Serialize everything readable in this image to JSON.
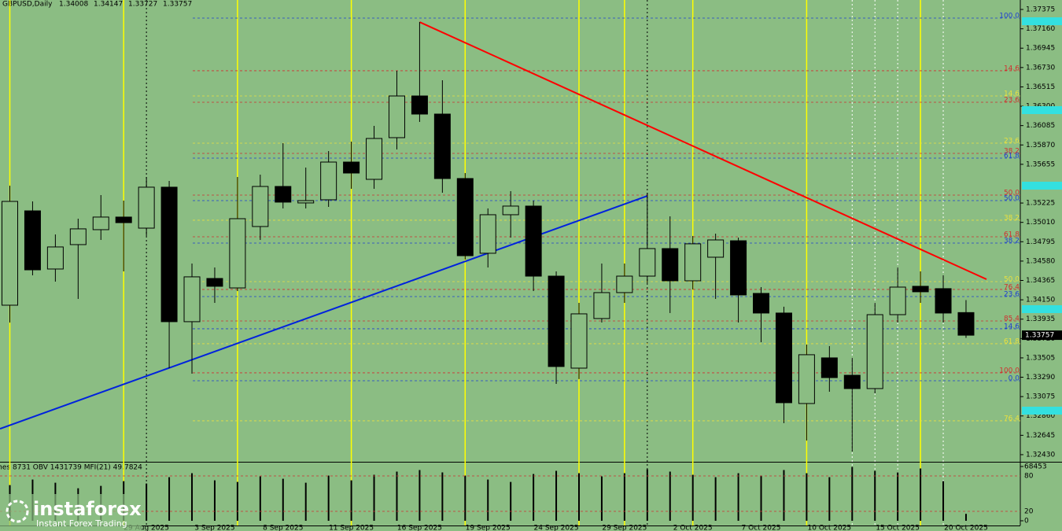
{
  "chart_data": {
    "type": "candlestick",
    "title": "GBPUSD,Daily",
    "categories": [
      null,
      null,
      null,
      null,
      null,
      null,
      "29 Aug 2025",
      null,
      null,
      "3 Sep 2025",
      null,
      null,
      "8 Sep 2025",
      null,
      null,
      "11 Sep 2025",
      null,
      null,
      "16 Sep 2025",
      null,
      null,
      "19 Sep 2025",
      null,
      null,
      "24 Sep 2025",
      null,
      null,
      "29 Sep 2025",
      null,
      null,
      "2 Oct 2025",
      null,
      null,
      "7 Oct 2025",
      null,
      null,
      "10 Oct 2025",
      null,
      null,
      "15 Oct 2025",
      null,
      null,
      "20 Oct 2025"
    ],
    "open": [
      1.3409,
      1.35138,
      1.34492,
      1.34763,
      1.34929,
      1.35069,
      1.34946,
      1.35401,
      1.33907,
      1.34387,
      1.34282,
      1.34964,
      1.35409,
      1.35226,
      1.35261,
      1.3568,
      1.35488,
      1.35951,
      1.36414,
      1.36213,
      1.35497,
      1.34667,
      1.35095,
      1.35191,
      1.34413,
      1.33391,
      1.33942,
      1.3423,
      1.34413,
      1.34719,
      1.34361,
      1.34623,
      1.34806,
      1.34221,
      1.34003,
      1.32998,
      1.33505,
      1.33312,
      1.33164,
      1.33985,
      1.343,
      1.34274,
      1.34008
    ],
    "high": [
      1.35418,
      1.35243,
      1.34876,
      1.35051,
      1.35313,
      1.35252,
      1.35514,
      1.3547,
      1.34553,
      1.34509,
      1.35514,
      1.3554,
      1.3589,
      1.35619,
      1.35802,
      1.35907,
      1.36082,
      1.36694,
      1.37235,
      1.36589,
      1.35558,
      1.35165,
      1.35357,
      1.35252,
      1.34466,
      1.34116,
      1.34553,
      1.34553,
      1.35339,
      1.35077,
      1.34859,
      1.34885,
      1.34841,
      1.34291,
      1.34073,
      1.33653,
      1.33636,
      1.33505,
      1.34116,
      1.34509,
      1.34466,
      1.34422,
      1.34147
    ],
    "low": [
      1.33898,
      1.34422,
      1.34352,
      1.3416,
      1.34815,
      1.34466,
      1.34859,
      1.33391,
      1.3333,
      1.34116,
      1.34247,
      1.34815,
      1.35165,
      1.35165,
      1.35182,
      1.35383,
      1.35383,
      1.3582,
      1.36126,
      1.35339,
      1.34597,
      1.34509,
      1.34841,
      1.34247,
      1.33216,
      1.33269,
      1.33898,
      1.34116,
      1.34335,
      1.34003,
      1.34265,
      1.3416,
      1.33898,
      1.33679,
      1.3278,
      1.32587,
      1.33129,
      1.32465,
      1.33111,
      1.33898,
      1.34116,
      1.33898,
      1.33727
    ],
    "close": [
      1.35243,
      1.34483,
      1.34737,
      1.34938,
      1.35069,
      1.35007,
      1.35401,
      1.33907,
      1.34405,
      1.343,
      1.35051,
      1.35409,
      1.35235,
      1.35252,
      1.3568,
      1.35558,
      1.35942,
      1.36414,
      1.36213,
      1.35497,
      1.3464,
      1.35095,
      1.35191,
      1.34413,
      1.33409,
      1.33994,
      1.3423,
      1.34413,
      1.34719,
      1.34361,
      1.34772,
      1.34815,
      1.34204,
      1.34003,
      1.33007,
      1.3354,
      1.33286,
      1.33164,
      1.33985,
      1.34291,
      1.34239,
      1.34003,
      1.33757
    ],
    "up_color": "#8bbd83",
    "down_color": "#000000",
    "ylim": [
      1.32351,
      1.3748
    ],
    "yticks": [
      1.37375,
      {
        "value": 1.3716,
        "label": "1.37160"
      },
      1.36945,
      {
        "value": 1.3673,
        "label": "1.36730"
      },
      1.36515,
      {
        "value": 1.363,
        "label": "1.36300"
      },
      1.36085,
      {
        "value": 1.3587,
        "label": "1.35870"
      },
      1.35655,
      1.35225,
      {
        "value": 1.3501,
        "label": "1.35010"
      },
      1.34795,
      {
        "value": 1.3458,
        "label": "1.34580"
      },
      1.34365,
      {
        "value": 1.3415,
        "label": "1.34150"
      },
      1.33935,
      {
        "value": 1.3372,
        "label": "1.33720"
      },
      1.33505,
      {
        "value": 1.3329,
        "label": "1.33290"
      },
      1.33075,
      {
        "value": 1.3286,
        "label": "1.32860"
      },
      1.32645,
      {
        "value": 1.3243,
        "label": "1.32430"
      }
    ],
    "levels": [
      {
        "label": "100.0",
        "price": 1.37279,
        "color": "#2040d0"
      },
      {
        "label": "14.6",
        "price": 1.36694,
        "color": "#d03030"
      },
      {
        "label": "14.6",
        "price": 1.36414,
        "color": "#e8e040"
      },
      {
        "label": "23.6",
        "price": 1.36344,
        "color": "#d03030"
      },
      {
        "label": "23.6",
        "price": 1.3589,
        "color": "#e8e040"
      },
      {
        "label": "38.2",
        "price": 1.35776,
        "color": "#d03030"
      },
      {
        "label": "61.8",
        "price": 1.35724,
        "color": "#2040d0"
      },
      {
        "label": "50.0",
        "price": 1.35313,
        "color": "#d03030"
      },
      {
        "label": "50.0",
        "price": 1.35252,
        "color": "#2040d0"
      },
      {
        "label": "38.2",
        "price": 1.35034,
        "color": "#e8e040"
      },
      {
        "label": "61.8",
        "price": 1.3485,
        "color": "#d03030"
      },
      {
        "label": "38.2",
        "price": 1.3478,
        "color": "#2040d0"
      },
      {
        "label": "50.0",
        "price": 1.34352,
        "color": "#e8e040"
      },
      {
        "label": "76.4",
        "price": 1.34265,
        "color": "#d03030"
      },
      {
        "label": "23.6",
        "price": 1.34186,
        "color": "#2040d0"
      },
      {
        "label": "85.4",
        "price": 1.33915,
        "color": "#d03030"
      },
      {
        "label": "14.6",
        "price": 1.33828,
        "color": "#2040d0"
      },
      {
        "label": "61.8",
        "price": 1.33662,
        "color": "#e8e040"
      },
      {
        "label": "100.0",
        "price": 1.33339,
        "color": "#d03030"
      },
      {
        "label": "0.0",
        "price": 1.33251,
        "color": "#2040d0"
      },
      {
        "label": "76.4",
        "price": 1.32806,
        "color": "#e8e040"
      }
    ],
    "trendlines": [
      {
        "color": "#ff0000",
        "from": [
          18,
          1.37235
        ],
        "to": [
          42.9,
          1.34378
        ]
      },
      {
        "color": "#0022dd",
        "from": [
          -0.43,
          1.32718
        ],
        "to": [
          28,
          1.35304
        ]
      }
    ],
    "vlines": [
      {
        "color": "#ffff00",
        "at": [
          0,
          5,
          10,
          15,
          20,
          25,
          27,
          30,
          35,
          40
        ]
      },
      {
        "color": "#000000",
        "at": [
          6,
          28
        ]
      },
      {
        "color": "#ffffff",
        "at": [
          37,
          38,
          39,
          41
        ]
      }
    ],
    "volume": {
      "title": "Volumes 8731 OBV 1431739 MFI(21) 49.7824",
      "values": [
        45000,
        52000,
        48000,
        41000,
        44000,
        50000,
        47000,
        55000,
        60000,
        51000,
        49000,
        56000,
        53000,
        48000,
        57000,
        51000,
        58000,
        62000,
        64000,
        61000,
        57000,
        52000,
        49000,
        59000,
        63000,
        60000,
        56000,
        60000,
        65000,
        62000,
        58000,
        55000,
        60000,
        57000,
        64000,
        60000,
        55000,
        68000,
        63000,
        61000,
        66000,
        50000,
        8731
      ],
      "ylim": [
        0,
        68453
      ],
      "yticks": [
        68453
      ],
      "mfi_ylim": [
        0,
        100
      ],
      "mfi_ticks": [
        0,
        20,
        80
      ]
    },
    "logo": {
      "name": "instaforex",
      "tagline": "Instant Forex Trading"
    }
  }
}
